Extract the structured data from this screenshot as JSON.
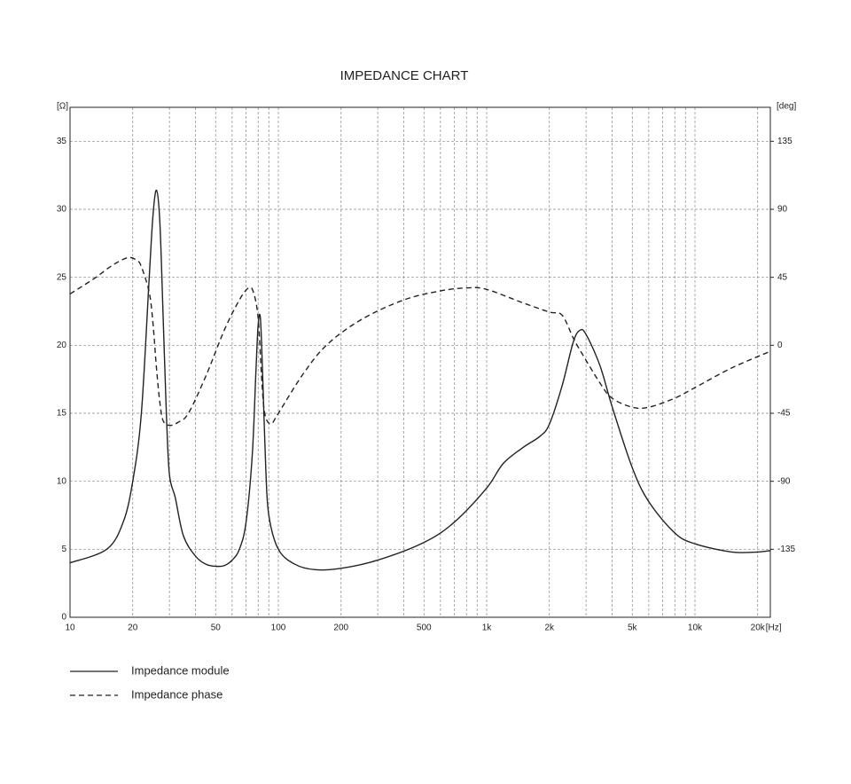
{
  "chart_data": {
    "type": "line",
    "title": "IMPEDANCE CHART",
    "y_unit": "[Ω]",
    "y2_unit": "[deg]",
    "x_unit": "[Hz]",
    "xlog": true,
    "grid": true,
    "xlim": [
      10,
      23000
    ],
    "xticks": [
      10,
      20,
      50,
      100,
      200,
      500,
      {
        "value": 1000,
        "label": "1k"
      },
      {
        "value": 2000,
        "label": "2k"
      },
      {
        "value": 5000,
        "label": "5k"
      },
      {
        "value": 10000,
        "label": "10k"
      },
      {
        "value": 20000,
        "label": "20k"
      }
    ],
    "xgrid_minor": [
      30,
      40,
      60,
      70,
      80,
      90,
      300,
      400,
      600,
      700,
      800,
      900,
      3000,
      4000,
      6000,
      7000,
      8000,
      9000
    ],
    "ylim": [
      0,
      37.5
    ],
    "yticks": [
      0,
      5,
      10,
      15,
      20,
      25,
      30,
      35
    ],
    "y2lim": [
      -180,
      157.5
    ],
    "y2ticks": [
      -135,
      -90,
      -45,
      0,
      45,
      90,
      135
    ],
    "series": [
      {
        "name": "Impedance module",
        "color": "#222222",
        "dash": false,
        "x": [
          10,
          15,
          18,
          20,
          22,
          24,
          25,
          26,
          27,
          28,
          29,
          30,
          32,
          35,
          40,
          45,
          50,
          55,
          60,
          65,
          70,
          75,
          78,
          80,
          82,
          84,
          87,
          90,
          100,
          120,
          150,
          200,
          300,
          500,
          700,
          1000,
          1200,
          1500,
          1800,
          2000,
          2300,
          2600,
          2800,
          3000,
          3500,
          4000,
          5000,
          6000,
          8000,
          10000,
          15000,
          20000,
          23000
        ],
        "values": [
          4.0,
          5.0,
          7,
          10,
          15,
          25,
          29.5,
          31.4,
          29,
          22,
          15,
          10.5,
          8.8,
          6,
          4.5,
          3.9,
          3.75,
          3.8,
          4.2,
          5,
          7,
          12,
          18,
          21.5,
          22,
          18,
          11,
          7.5,
          5,
          3.9,
          3.5,
          3.6,
          4.2,
          5.5,
          7,
          9.5,
          11.3,
          12.5,
          13.3,
          14.2,
          17,
          20.2,
          21.1,
          20.8,
          18.5,
          15.5,
          11,
          8.5,
          6.2,
          5.4,
          4.8,
          4.8,
          4.9
        ]
      },
      {
        "name": "Impedance phase",
        "color": "#222222",
        "dash": true,
        "axis": "y2",
        "x": [
          10,
          13,
          16,
          19,
          21,
          22,
          24,
          25,
          26,
          27,
          28,
          30,
          33,
          37,
          45,
          55,
          65,
          72,
          76,
          80,
          83,
          86,
          92,
          100,
          130,
          170,
          250,
          400,
          600,
          810,
          1000,
          1500,
          2000,
          2300,
          2600,
          2800,
          3500,
          4000,
          5000,
          6000,
          8000,
          10000,
          15000,
          23000
        ],
        "values": [
          34,
          44,
          53,
          58,
          56,
          52,
          35,
          15,
          -15,
          -38,
          -50,
          -53,
          -51,
          -45,
          -20,
          10,
          30,
          38,
          35,
          18,
          -20,
          -45,
          -52,
          -45,
          -20,
          0,
          17,
          30,
          36,
          38,
          37,
          28,
          22,
          20,
          5,
          -3,
          -25,
          -35,
          -41,
          -41,
          -35,
          -28,
          -15,
          -4
        ]
      }
    ]
  }
}
